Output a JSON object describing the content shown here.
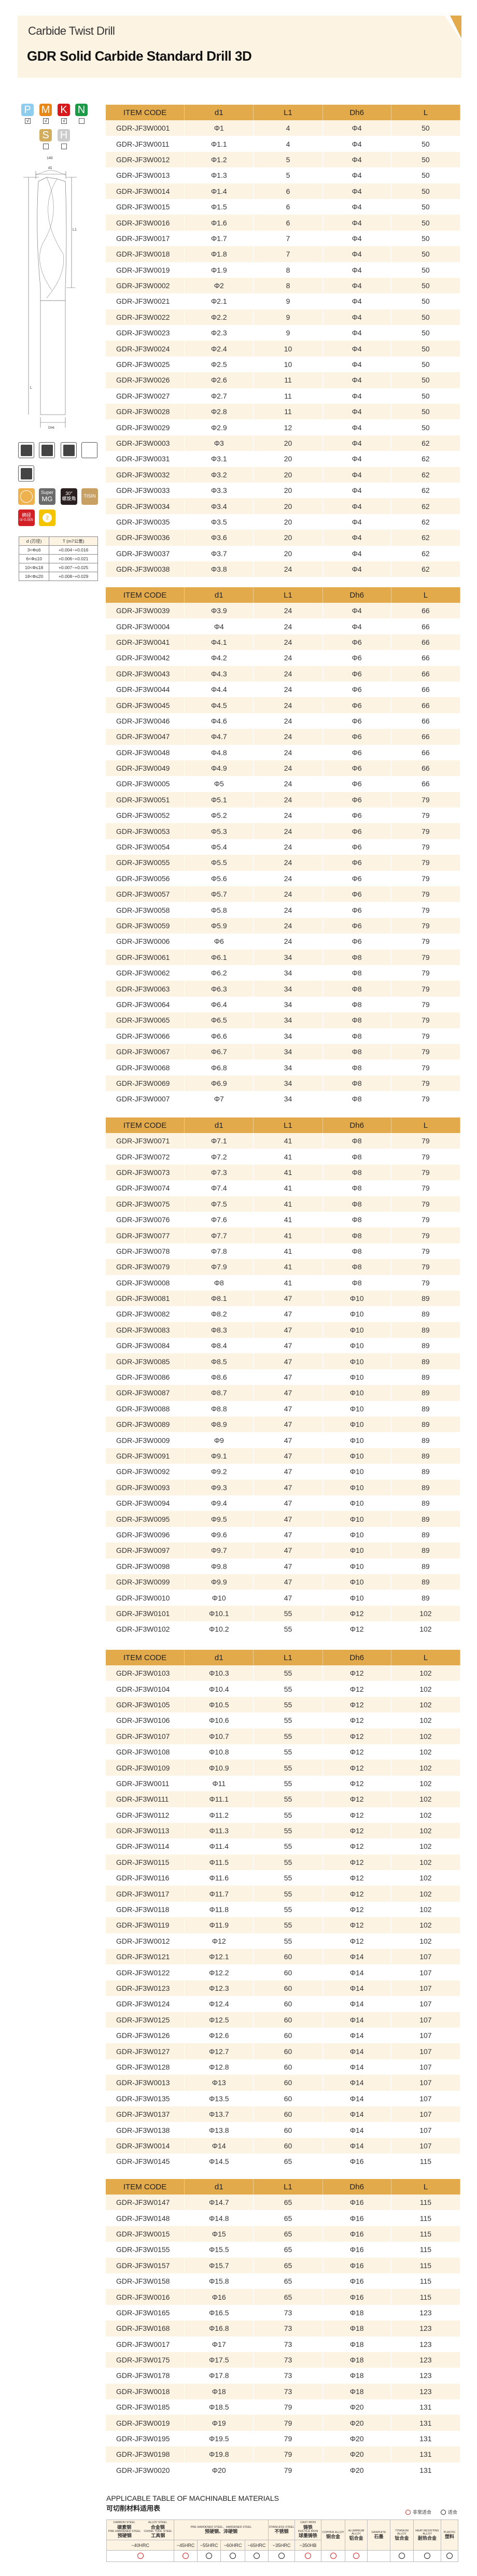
{
  "header": {
    "subtitle": "Carbide Twist Drill",
    "title": "GDR Solid Carbide Standard Drill 3D",
    "accent_color": "#e2aa4b",
    "stripe_color": "#fdf3e3"
  },
  "materials": [
    {
      "letter": "P",
      "color": "#8fcdee",
      "checked": true
    },
    {
      "letter": "M",
      "color": "#e98618",
      "checked": true
    },
    {
      "letter": "K",
      "color": "#d7191e",
      "checked": true
    },
    {
      "letter": "N",
      "color": "#1c9a48",
      "checked": false
    },
    {
      "letter": "S",
      "color": "#d3ad5e",
      "checked": false
    },
    {
      "letter": "H",
      "color": "#cccccc",
      "checked": false
    }
  ],
  "check_mark": "√",
  "diagram": {
    "angle": "140",
    "d1": "d1",
    "L1": "L1",
    "L": "L",
    "Dh6": "Dh6"
  },
  "features": {
    "super_top": "Super",
    "super_bottom": "MG",
    "helix_angle": "30°",
    "helix_label": "螺旋角",
    "coating": "TISIN",
    "shank_label": "柄径",
    "shank_tol": "0/-0.005",
    "flutes": "2"
  },
  "tolerance": {
    "headers": [
      "d (刃径)",
      "T (m7公差)"
    ],
    "rows": [
      [
        "3<Φ≤6",
        "+0.004~+0.016"
      ],
      [
        "6<Φ≤10",
        "+0.006~+0.021"
      ],
      [
        "10<Φ≤18",
        "+0.007~+0.025"
      ],
      [
        "18<Φ≤20",
        "+0.008~+0.029"
      ]
    ]
  },
  "spec_headers": [
    "ITEM CODE",
    "d1",
    "L1",
    "Dh6",
    "L"
  ],
  "spec_tables": [
    [
      [
        "GDR-JF3W0001",
        "Φ1",
        "4",
        "Φ4",
        "50"
      ],
      [
        "GDR-JF3W0011",
        "Φ1.1",
        "4",
        "Φ4",
        "50"
      ],
      [
        "GDR-JF3W0012",
        "Φ1.2",
        "5",
        "Φ4",
        "50"
      ],
      [
        "GDR-JF3W0013",
        "Φ1.3",
        "5",
        "Φ4",
        "50"
      ],
      [
        "GDR-JF3W0014",
        "Φ1.4",
        "6",
        "Φ4",
        "50"
      ],
      [
        "GDR-JF3W0015",
        "Φ1.5",
        "6",
        "Φ4",
        "50"
      ],
      [
        "GDR-JF3W0016",
        "Φ1.6",
        "6",
        "Φ4",
        "50"
      ],
      [
        "GDR-JF3W0017",
        "Φ1.7",
        "7",
        "Φ4",
        "50"
      ],
      [
        "GDR-JF3W0018",
        "Φ1.8",
        "7",
        "Φ4",
        "50"
      ],
      [
        "GDR-JF3W0019",
        "Φ1.9",
        "8",
        "Φ4",
        "50"
      ],
      [
        "GDR-JF3W0002",
        "Φ2",
        "8",
        "Φ4",
        "50"
      ],
      [
        "GDR-JF3W0021",
        "Φ2.1",
        "9",
        "Φ4",
        "50"
      ],
      [
        "GDR-JF3W0022",
        "Φ2.2",
        "9",
        "Φ4",
        "50"
      ],
      [
        "GDR-JF3W0023",
        "Φ2.3",
        "9",
        "Φ4",
        "50"
      ],
      [
        "GDR-JF3W0024",
        "Φ2.4",
        "10",
        "Φ4",
        "50"
      ],
      [
        "GDR-JF3W0025",
        "Φ2.5",
        "10",
        "Φ4",
        "50"
      ],
      [
        "GDR-JF3W0026",
        "Φ2.6",
        "11",
        "Φ4",
        "50"
      ],
      [
        "GDR-JF3W0027",
        "Φ2.7",
        "11",
        "Φ4",
        "50"
      ],
      [
        "GDR-JF3W0028",
        "Φ2.8",
        "11",
        "Φ4",
        "50"
      ],
      [
        "GDR-JF3W0029",
        "Φ2.9",
        "12",
        "Φ4",
        "50"
      ],
      [
        "GDR-JF3W0003",
        "Φ3",
        "20",
        "Φ4",
        "62"
      ],
      [
        "GDR-JF3W0031",
        "Φ3.1",
        "20",
        "Φ4",
        "62"
      ],
      [
        "GDR-JF3W0032",
        "Φ3.2",
        "20",
        "Φ4",
        "62"
      ],
      [
        "GDR-JF3W0033",
        "Φ3.3",
        "20",
        "Φ4",
        "62"
      ],
      [
        "GDR-JF3W0034",
        "Φ3.4",
        "20",
        "Φ4",
        "62"
      ],
      [
        "GDR-JF3W0035",
        "Φ3.5",
        "20",
        "Φ4",
        "62"
      ],
      [
        "GDR-JF3W0036",
        "Φ3.6",
        "20",
        "Φ4",
        "62"
      ],
      [
        "GDR-JF3W0037",
        "Φ3.7",
        "20",
        "Φ4",
        "62"
      ],
      [
        "GDR-JF3W0038",
        "Φ3.8",
        "24",
        "Φ4",
        "62"
      ]
    ],
    [
      [
        "GDR-JF3W0039",
        "Φ3.9",
        "24",
        "Φ4",
        "66"
      ],
      [
        "GDR-JF3W0004",
        "Φ4",
        "24",
        "Φ4",
        "66"
      ],
      [
        "GDR-JF3W0041",
        "Φ4.1",
        "24",
        "Φ6",
        "66"
      ],
      [
        "GDR-JF3W0042",
        "Φ4.2",
        "24",
        "Φ6",
        "66"
      ],
      [
        "GDR-JF3W0043",
        "Φ4.3",
        "24",
        "Φ6",
        "66"
      ],
      [
        "GDR-JF3W0044",
        "Φ4.4",
        "24",
        "Φ6",
        "66"
      ],
      [
        "GDR-JF3W0045",
        "Φ4.5",
        "24",
        "Φ6",
        "66"
      ],
      [
        "GDR-JF3W0046",
        "Φ4.6",
        "24",
        "Φ6",
        "66"
      ],
      [
        "GDR-JF3W0047",
        "Φ4.7",
        "24",
        "Φ6",
        "66"
      ],
      [
        "GDR-JF3W0048",
        "Φ4.8",
        "24",
        "Φ6",
        "66"
      ],
      [
        "GDR-JF3W0049",
        "Φ4.9",
        "24",
        "Φ6",
        "66"
      ],
      [
        "GDR-JF3W0005",
        "Φ5",
        "24",
        "Φ6",
        "66"
      ],
      [
        "GDR-JF3W0051",
        "Φ5.1",
        "24",
        "Φ6",
        "79"
      ],
      [
        "GDR-JF3W0052",
        "Φ5.2",
        "24",
        "Φ6",
        "79"
      ],
      [
        "GDR-JF3W0053",
        "Φ5.3",
        "24",
        "Φ6",
        "79"
      ],
      [
        "GDR-JF3W0054",
        "Φ5.4",
        "24",
        "Φ6",
        "79"
      ],
      [
        "GDR-JF3W0055",
        "Φ5.5",
        "24",
        "Φ6",
        "79"
      ],
      [
        "GDR-JF3W0056",
        "Φ5.6",
        "24",
        "Φ6",
        "79"
      ],
      [
        "GDR-JF3W0057",
        "Φ5.7",
        "24",
        "Φ6",
        "79"
      ],
      [
        "GDR-JF3W0058",
        "Φ5.8",
        "24",
        "Φ6",
        "79"
      ],
      [
        "GDR-JF3W0059",
        "Φ5.9",
        "24",
        "Φ6",
        "79"
      ],
      [
        "GDR-JF3W0006",
        "Φ6",
        "24",
        "Φ6",
        "79"
      ],
      [
        "GDR-JF3W0061",
        "Φ6.1",
        "34",
        "Φ8",
        "79"
      ],
      [
        "GDR-JF3W0062",
        "Φ6.2",
        "34",
        "Φ8",
        "79"
      ],
      [
        "GDR-JF3W0063",
        "Φ6.3",
        "34",
        "Φ8",
        "79"
      ],
      [
        "GDR-JF3W0064",
        "Φ6.4",
        "34",
        "Φ8",
        "79"
      ],
      [
        "GDR-JF3W0065",
        "Φ6.5",
        "34",
        "Φ8",
        "79"
      ],
      [
        "GDR-JF3W0066",
        "Φ6.6",
        "34",
        "Φ8",
        "79"
      ],
      [
        "GDR-JF3W0067",
        "Φ6.7",
        "34",
        "Φ8",
        "79"
      ],
      [
        "GDR-JF3W0068",
        "Φ6.8",
        "34",
        "Φ8",
        "79"
      ],
      [
        "GDR-JF3W0069",
        "Φ6.9",
        "34",
        "Φ8",
        "79"
      ],
      [
        "GDR-JF3W0007",
        "Φ7",
        "34",
        "Φ8",
        "79"
      ]
    ],
    [
      [
        "GDR-JF3W0071",
        "Φ7.1",
        "41",
        "Φ8",
        "79"
      ],
      [
        "GDR-JF3W0072",
        "Φ7.2",
        "41",
        "Φ8",
        "79"
      ],
      [
        "GDR-JF3W0073",
        "Φ7.3",
        "41",
        "Φ8",
        "79"
      ],
      [
        "GDR-JF3W0074",
        "Φ7.4",
        "41",
        "Φ8",
        "79"
      ],
      [
        "GDR-JF3W0075",
        "Φ7.5",
        "41",
        "Φ8",
        "79"
      ],
      [
        "GDR-JF3W0076",
        "Φ7.6",
        "41",
        "Φ8",
        "79"
      ],
      [
        "GDR-JF3W0077",
        "Φ7.7",
        "41",
        "Φ8",
        "79"
      ],
      [
        "GDR-JF3W0078",
        "Φ7.8",
        "41",
        "Φ8",
        "79"
      ],
      [
        "GDR-JF3W0079",
        "Φ7.9",
        "41",
        "Φ8",
        "79"
      ],
      [
        "GDR-JF3W0008",
        "Φ8",
        "41",
        "Φ8",
        "79"
      ],
      [
        "GDR-JF3W0081",
        "Φ8.1",
        "47",
        "Φ10",
        "89"
      ],
      [
        "GDR-JF3W0082",
        "Φ8.2",
        "47",
        "Φ10",
        "89"
      ],
      [
        "GDR-JF3W0083",
        "Φ8.3",
        "47",
        "Φ10",
        "89"
      ],
      [
        "GDR-JF3W0084",
        "Φ8.4",
        "47",
        "Φ10",
        "89"
      ],
      [
        "GDR-JF3W0085",
        "Φ8.5",
        "47",
        "Φ10",
        "89"
      ],
      [
        "GDR-JF3W0086",
        "Φ8.6",
        "47",
        "Φ10",
        "89"
      ],
      [
        "GDR-JF3W0087",
        "Φ8.7",
        "47",
        "Φ10",
        "89"
      ],
      [
        "GDR-JF3W0088",
        "Φ8.8",
        "47",
        "Φ10",
        "89"
      ],
      [
        "GDR-JF3W0089",
        "Φ8.9",
        "47",
        "Φ10",
        "89"
      ],
      [
        "GDR-JF3W0009",
        "Φ9",
        "47",
        "Φ10",
        "89"
      ],
      [
        "GDR-JF3W0091",
        "Φ9.1",
        "47",
        "Φ10",
        "89"
      ],
      [
        "GDR-JF3W0092",
        "Φ9.2",
        "47",
        "Φ10",
        "89"
      ],
      [
        "GDR-JF3W0093",
        "Φ9.3",
        "47",
        "Φ10",
        "89"
      ],
      [
        "GDR-JF3W0094",
        "Φ9.4",
        "47",
        "Φ10",
        "89"
      ],
      [
        "GDR-JF3W0095",
        "Φ9.5",
        "47",
        "Φ10",
        "89"
      ],
      [
        "GDR-JF3W0096",
        "Φ9.6",
        "47",
        "Φ10",
        "89"
      ],
      [
        "GDR-JF3W0097",
        "Φ9.7",
        "47",
        "Φ10",
        "89"
      ],
      [
        "GDR-JF3W0098",
        "Φ9.8",
        "47",
        "Φ10",
        "89"
      ],
      [
        "GDR-JF3W0099",
        "Φ9.9",
        "47",
        "Φ10",
        "89"
      ],
      [
        "GDR-JF3W0010",
        "Φ10",
        "47",
        "Φ10",
        "89"
      ],
      [
        "GDR-JF3W0101",
        "Φ10.1",
        "55",
        "Φ12",
        "102"
      ],
      [
        "GDR-JF3W0102",
        "Φ10.2",
        "55",
        "Φ12",
        "102"
      ]
    ],
    [
      [
        "GDR-JF3W0103",
        "Φ10.3",
        "55",
        "Φ12",
        "102"
      ],
      [
        "GDR-JF3W0104",
        "Φ10.4",
        "55",
        "Φ12",
        "102"
      ],
      [
        "GDR-JF3W0105",
        "Φ10.5",
        "55",
        "Φ12",
        "102"
      ],
      [
        "GDR-JF3W0106",
        "Φ10.6",
        "55",
        "Φ12",
        "102"
      ],
      [
        "GDR-JF3W0107",
        "Φ10.7",
        "55",
        "Φ12",
        "102"
      ],
      [
        "GDR-JF3W0108",
        "Φ10.8",
        "55",
        "Φ12",
        "102"
      ],
      [
        "GDR-JF3W0109",
        "Φ10.9",
        "55",
        "Φ12",
        "102"
      ],
      [
        "GDR-JF3W0011",
        "Φ11",
        "55",
        "Φ12",
        "102"
      ],
      [
        "GDR-JF3W0111",
        "Φ11.1",
        "55",
        "Φ12",
        "102"
      ],
      [
        "GDR-JF3W0112",
        "Φ11.2",
        "55",
        "Φ12",
        "102"
      ],
      [
        "GDR-JF3W0113",
        "Φ11.3",
        "55",
        "Φ12",
        "102"
      ],
      [
        "GDR-JF3W0114",
        "Φ11.4",
        "55",
        "Φ12",
        "102"
      ],
      [
        "GDR-JF3W0115",
        "Φ11.5",
        "55",
        "Φ12",
        "102"
      ],
      [
        "GDR-JF3W0116",
        "Φ11.6",
        "55",
        "Φ12",
        "102"
      ],
      [
        "GDR-JF3W0117",
        "Φ11.7",
        "55",
        "Φ12",
        "102"
      ],
      [
        "GDR-JF3W0118",
        "Φ11.8",
        "55",
        "Φ12",
        "102"
      ],
      [
        "GDR-JF3W0119",
        "Φ11.9",
        "55",
        "Φ12",
        "102"
      ],
      [
        "GDR-JF3W0012",
        "Φ12",
        "55",
        "Φ12",
        "102"
      ],
      [
        "GDR-JF3W0121",
        "Φ12.1",
        "60",
        "Φ14",
        "107"
      ],
      [
        "GDR-JF3W0122",
        "Φ12.2",
        "60",
        "Φ14",
        "107"
      ],
      [
        "GDR-JF3W0123",
        "Φ12.3",
        "60",
        "Φ14",
        "107"
      ],
      [
        "GDR-JF3W0124",
        "Φ12.4",
        "60",
        "Φ14",
        "107"
      ],
      [
        "GDR-JF3W0125",
        "Φ12.5",
        "60",
        "Φ14",
        "107"
      ],
      [
        "GDR-JF3W0126",
        "Φ12.6",
        "60",
        "Φ14",
        "107"
      ],
      [
        "GDR-JF3W0127",
        "Φ12.7",
        "60",
        "Φ14",
        "107"
      ],
      [
        "GDR-JF3W0128",
        "Φ12.8",
        "60",
        "Φ14",
        "107"
      ],
      [
        "GDR-JF3W0013",
        "Φ13",
        "60",
        "Φ14",
        "107"
      ],
      [
        "GDR-JF3W0135",
        "Φ13.5",
        "60",
        "Φ14",
        "107"
      ],
      [
        "GDR-JF3W0137",
        "Φ13.7",
        "60",
        "Φ14",
        "107"
      ],
      [
        "GDR-JF3W0138",
        "Φ13.8",
        "60",
        "Φ14",
        "107"
      ],
      [
        "GDR-JF3W0014",
        "Φ14",
        "60",
        "Φ14",
        "107"
      ],
      [
        "GDR-JF3W0145",
        "Φ14.5",
        "65",
        "Φ16",
        "115"
      ]
    ],
    [
      [
        "GDR-JF3W0147",
        "Φ14.7",
        "65",
        "Φ16",
        "115"
      ],
      [
        "GDR-JF3W0148",
        "Φ14.8",
        "65",
        "Φ16",
        "115"
      ],
      [
        "GDR-JF3W0015",
        "Φ15",
        "65",
        "Φ16",
        "115"
      ],
      [
        "GDR-JF3W0155",
        "Φ15.5",
        "65",
        "Φ16",
        "115"
      ],
      [
        "GDR-JF3W0157",
        "Φ15.7",
        "65",
        "Φ16",
        "115"
      ],
      [
        "GDR-JF3W0158",
        "Φ15.8",
        "65",
        "Φ16",
        "115"
      ],
      [
        "GDR-JF3W0016",
        "Φ16",
        "65",
        "Φ16",
        "115"
      ],
      [
        "GDR-JF3W0165",
        "Φ16.5",
        "73",
        "Φ18",
        "123"
      ],
      [
        "GDR-JF3W0168",
        "Φ16.8",
        "73",
        "Φ18",
        "123"
      ],
      [
        "GDR-JF3W0017",
        "Φ17",
        "73",
        "Φ18",
        "123"
      ],
      [
        "GDR-JF3W0175",
        "Φ17.5",
        "73",
        "Φ18",
        "123"
      ],
      [
        "GDR-JF3W0178",
        "Φ17.8",
        "73",
        "Φ18",
        "123"
      ],
      [
        "GDR-JF3W0018",
        "Φ18",
        "73",
        "Φ18",
        "123"
      ],
      [
        "GDR-JF3W0185",
        "Φ18.5",
        "79",
        "Φ20",
        "131"
      ],
      [
        "GDR-JF3W0019",
        "Φ19",
        "79",
        "Φ20",
        "131"
      ],
      [
        "GDR-JF3W0195",
        "Φ19.5",
        "79",
        "Φ20",
        "131"
      ],
      [
        "GDR-JF3W0198",
        "Φ19.8",
        "79",
        "Φ20",
        "131"
      ],
      [
        "GDR-JF3W0020",
        "Φ20",
        "79",
        "Φ20",
        "131"
      ]
    ]
  ],
  "applicable": {
    "title": "APPLICABLE TABLE OF MACHINABLE MATERIALS",
    "title_cn": "可切削材料适用表",
    "legend": [
      {
        "label": "非常适合",
        "mark": "very-suitable",
        "color": "#e02020"
      },
      {
        "label": "适合",
        "mark": "suitable",
        "color": "#222222"
      }
    ],
    "groups": [
      {
        "lines": [
          [
            "CARBON STEEL",
            "碳素钢"
          ],
          [
            "ALLOY STEEL",
            "合金钢"
          ],
          [
            "PRE HARDENED STEEL",
            "预硬钢"
          ],
          [
            "CHISEL TOOL STEEL",
            "工具钢"
          ]
        ],
        "span": 1
      },
      {
        "en": "PRE HARDENED STEEL、HARDENED STEEL",
        "cn": "预硬钢、淬硬钢",
        "span": 4
      },
      {
        "en": "STAINLESS STEEL",
        "cn": "不锈钢",
        "span": 1
      },
      {
        "en": "CAST IRON",
        "cn": "铸铁",
        "en2": "DUCTILE IRON",
        "cn2": "球墨铸铁",
        "span": 1
      },
      {
        "en": "COPPER ALLOY",
        "cn": "铜合金",
        "span": 1,
        "rowspan": 2
      },
      {
        "en": "ALUMINIUM ALLOY",
        "cn": "铝合金",
        "span": 1,
        "rowspan": 2
      },
      {
        "en": "GRAPHITE",
        "cn": "石墨",
        "span": 1,
        "rowspan": 2
      },
      {
        "en": "TITANIUM ALLOY",
        "cn": "钛合金",
        "span": 1,
        "rowspan": 2
      },
      {
        "en": "HEAT-RESISTING ALLOY",
        "cn": "耐热合金",
        "span": 1,
        "rowspan": 2
      },
      {
        "en": "PLASTIC",
        "cn": "塑料",
        "span": 1,
        "rowspan": 2
      }
    ],
    "hardness": [
      "~40HRC",
      "~45HRC",
      "~55HRC",
      "~60HRC",
      "~65HRC",
      "~35HRC",
      "~350HB"
    ],
    "marks": [
      "very-suitable",
      "very-suitable",
      "suitable",
      "suitable",
      "suitable",
      "suitable",
      "very-suitable",
      "very-suitable",
      "very-suitable",
      "none",
      "suitable",
      "suitable",
      "suitable"
    ]
  }
}
